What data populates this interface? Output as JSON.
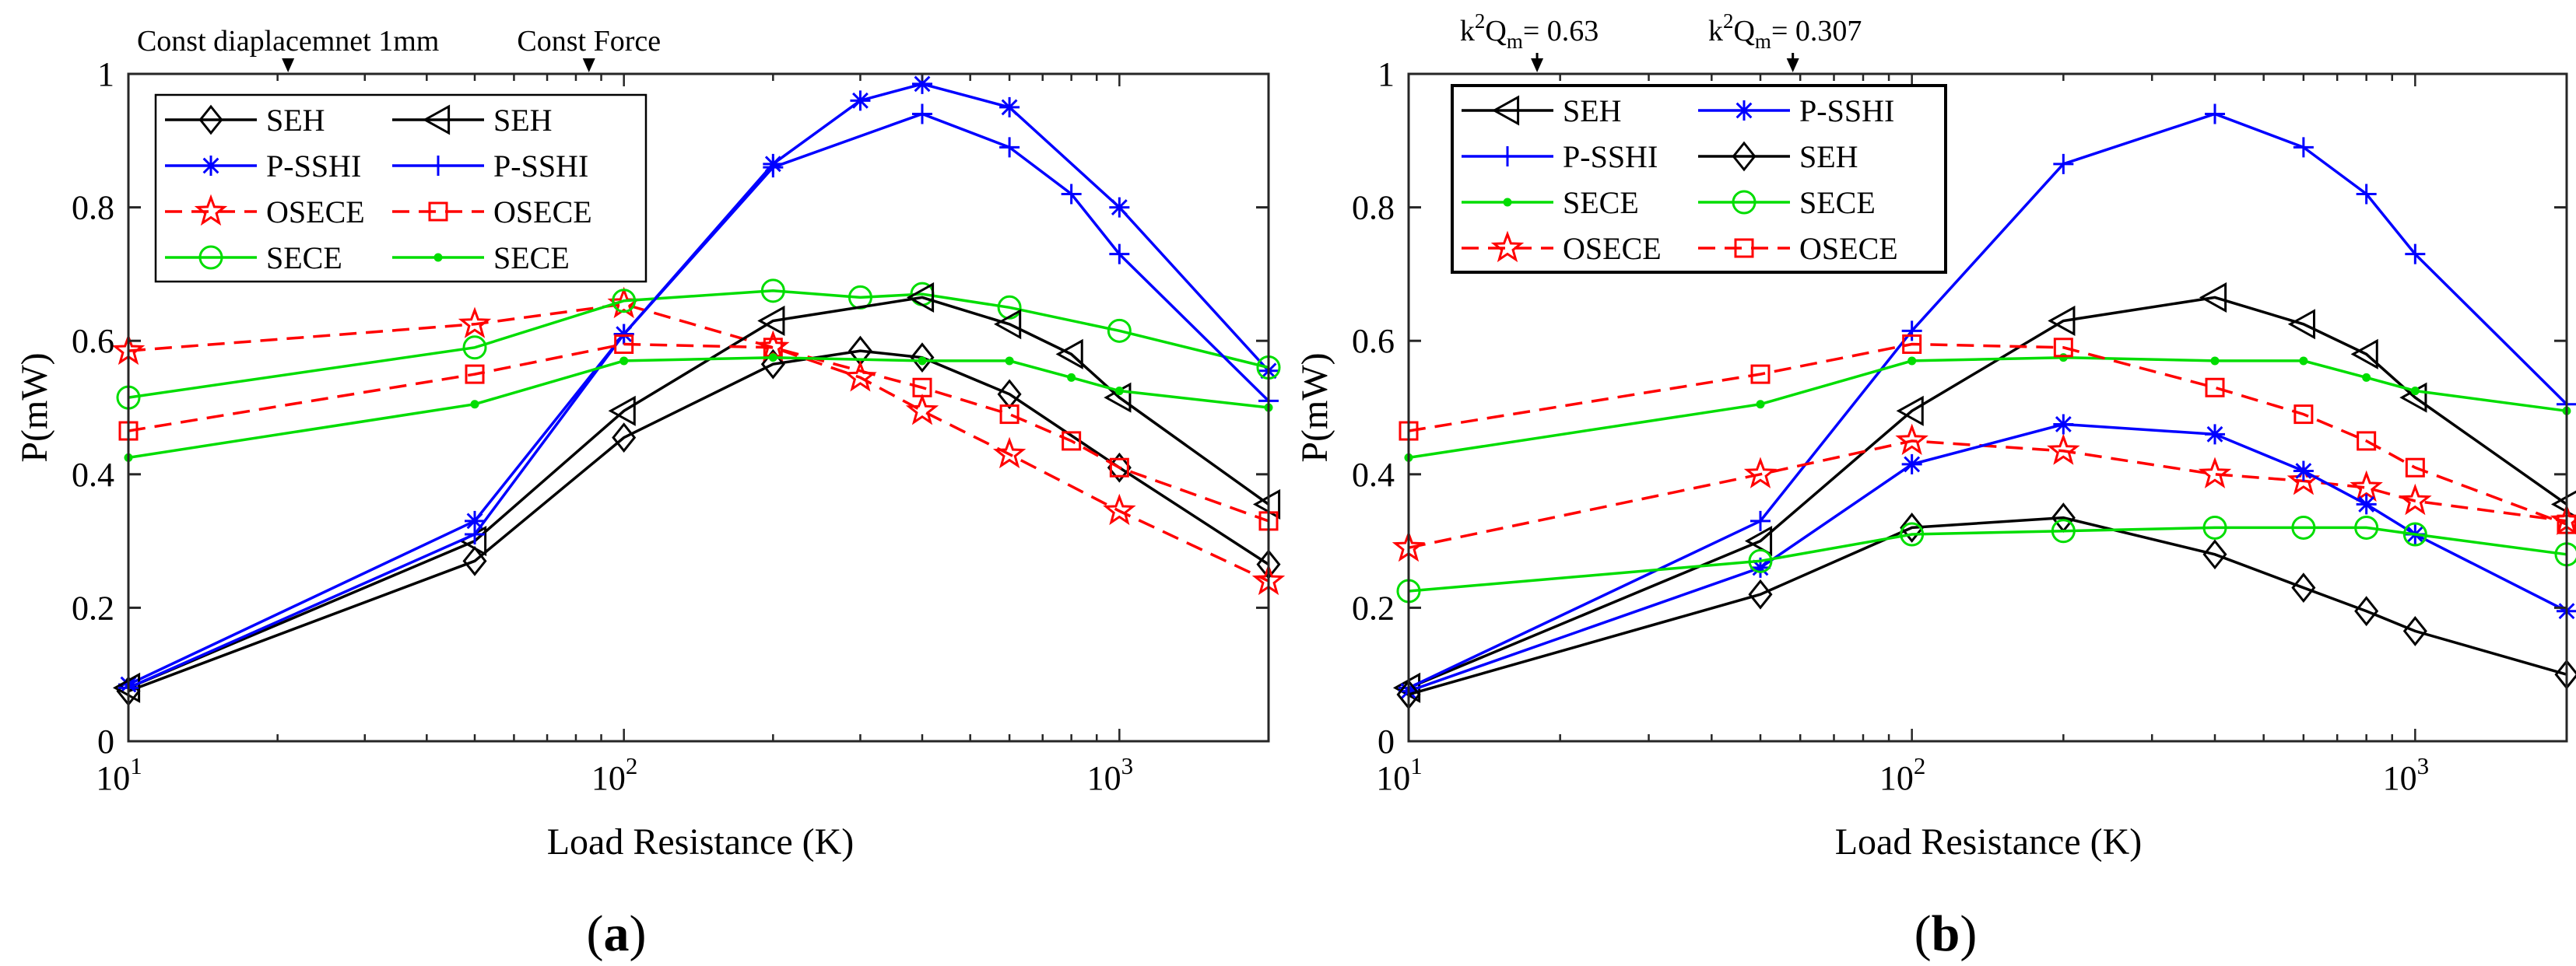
{
  "colors": {
    "black": "#000000",
    "blue": "#0000ff",
    "red": "#ff0000",
    "green": "#00dd00"
  },
  "chart_data": [
    {
      "type": "line",
      "panel_label": "(a)",
      "xlabel": "Load Resistance (K)",
      "ylabel": "P(mW)",
      "xscale": "log",
      "xlim": [
        10,
        2000
      ],
      "ylim": [
        0,
        1
      ],
      "x_ticks": [
        10,
        100,
        1000
      ],
      "x_tick_labels": [
        [
          "10",
          "1"
        ],
        [
          "10",
          "2"
        ],
        [
          "10",
          "3"
        ]
      ],
      "y_ticks": [
        0,
        0.2,
        0.4,
        0.6,
        0.8,
        1
      ],
      "y_tick_labels": [
        "0",
        "0.2",
        "0.4",
        "0.6",
        "0.8",
        "1"
      ],
      "grid": false,
      "legend_position": "top-left, two columns",
      "annotations": [
        {
          "text": "Const diaplacemnet 1mm",
          "x": 21
        },
        {
          "text": "Const Force",
          "x": 85
        }
      ],
      "series": [
        {
          "name": "SEH",
          "color": "black",
          "dash": "solid",
          "marker": "diamond",
          "legend": "left",
          "x": [
            10,
            50,
            100,
            200,
            300,
            400,
            600,
            1000,
            2000
          ],
          "y": [
            0.075,
            0.27,
            0.455,
            0.565,
            0.585,
            0.575,
            0.52,
            0.41,
            0.265
          ]
        },
        {
          "name": "P-SSHI",
          "color": "blue",
          "dash": "solid",
          "marker": "asterisk",
          "legend": "left",
          "x": [
            10,
            50,
            100,
            200,
            300,
            400,
            600,
            1000,
            2000
          ],
          "y": [
            0.085,
            0.33,
            0.61,
            0.865,
            0.96,
            0.985,
            0.95,
            0.8,
            0.555
          ]
        },
        {
          "name": "OSECE",
          "color": "red",
          "dash": "dashed",
          "marker": "star",
          "legend": "left",
          "x": [
            10,
            50,
            100,
            200,
            300,
            400,
            600,
            1000,
            2000
          ],
          "y": [
            0.585,
            0.625,
            0.655,
            0.59,
            0.545,
            0.495,
            0.43,
            0.345,
            0.24
          ]
        },
        {
          "name": "SECE",
          "color": "green",
          "dash": "solid",
          "marker": "circle",
          "legend": "left",
          "x": [
            10,
            50,
            100,
            200,
            300,
            400,
            600,
            1000,
            2000
          ],
          "y": [
            0.515,
            0.59,
            0.66,
            0.675,
            0.665,
            0.67,
            0.65,
            0.615,
            0.56
          ]
        },
        {
          "name": "SEH",
          "color": "black",
          "dash": "solid",
          "marker": "triangle-left",
          "legend": "right",
          "x": [
            10,
            50,
            100,
            200,
            400,
            600,
            800,
            1000,
            2000
          ],
          "y": [
            0.08,
            0.3,
            0.495,
            0.63,
            0.665,
            0.625,
            0.58,
            0.515,
            0.355
          ]
        },
        {
          "name": "P-SSHI",
          "color": "blue",
          "dash": "solid",
          "marker": "plus",
          "legend": "right",
          "x": [
            10,
            50,
            100,
            200,
            400,
            600,
            800,
            1000,
            2000
          ],
          "y": [
            0.08,
            0.31,
            0.61,
            0.86,
            0.94,
            0.89,
            0.82,
            0.73,
            0.51
          ]
        },
        {
          "name": "OSECE",
          "color": "red",
          "dash": "dashed",
          "marker": "square",
          "legend": "right",
          "x": [
            10,
            50,
            100,
            200,
            400,
            600,
            800,
            1000,
            2000
          ],
          "y": [
            0.465,
            0.55,
            0.595,
            0.59,
            0.53,
            0.49,
            0.45,
            0.41,
            0.33
          ]
        },
        {
          "name": "SECE",
          "color": "green",
          "dash": "solid",
          "marker": "dot",
          "legend": "right",
          "x": [
            10,
            50,
            100,
            200,
            400,
            600,
            800,
            1000,
            2000
          ],
          "y": [
            0.425,
            0.505,
            0.57,
            0.575,
            0.57,
            0.57,
            0.545,
            0.525,
            0.5
          ]
        }
      ]
    },
    {
      "type": "line",
      "panel_label": "(b)",
      "xlabel": "Load Resistance (K)",
      "ylabel": "P(mW)",
      "xscale": "log",
      "xlim": [
        10,
        2000
      ],
      "ylim": [
        0,
        1
      ],
      "x_ticks": [
        10,
        100,
        1000
      ],
      "x_tick_labels": [
        [
          "10",
          "1"
        ],
        [
          "10",
          "2"
        ],
        [
          "10",
          "3"
        ]
      ],
      "y_ticks": [
        0,
        0.2,
        0.4,
        0.6,
        0.8,
        1
      ],
      "y_tick_labels": [
        "0",
        "0.2",
        "0.4",
        "0.6",
        "0.8",
        "1"
      ],
      "grid": false,
      "legend_position": "top-left, two columns",
      "annotations": [
        {
          "text": "k²Qₘ= 0.63",
          "x": 18
        },
        {
          "text": "k²Qₘ= 0.307",
          "x": 58
        }
      ],
      "series": [
        {
          "name": "SEH",
          "color": "black",
          "dash": "solid",
          "marker": "triangle-left",
          "legend": "left",
          "x": [
            10,
            50,
            100,
            200,
            400,
            600,
            800,
            1000,
            2000
          ],
          "y": [
            0.08,
            0.3,
            0.495,
            0.63,
            0.665,
            0.625,
            0.58,
            0.515,
            0.355
          ]
        },
        {
          "name": "P-SSHI",
          "color": "blue",
          "dash": "solid",
          "marker": "plus",
          "legend": "left",
          "x": [
            10,
            50,
            100,
            200,
            400,
            600,
            800,
            1000,
            2000
          ],
          "y": [
            0.08,
            0.33,
            0.615,
            0.865,
            0.94,
            0.89,
            0.82,
            0.73,
            0.505
          ]
        },
        {
          "name": "SECE",
          "color": "green",
          "dash": "solid",
          "marker": "dot",
          "legend": "left",
          "x": [
            10,
            50,
            100,
            200,
            400,
            600,
            800,
            1000,
            2000
          ],
          "y": [
            0.425,
            0.505,
            0.57,
            0.575,
            0.57,
            0.57,
            0.545,
            0.525,
            0.495
          ]
        },
        {
          "name": "OSECE",
          "color": "red",
          "dash": "dashed",
          "marker": "star",
          "legend": "left",
          "x": [
            10,
            50,
            100,
            200,
            400,
            600,
            800,
            1000,
            2000
          ],
          "y": [
            0.29,
            0.4,
            0.45,
            0.435,
            0.4,
            0.39,
            0.38,
            0.36,
            0.33
          ]
        },
        {
          "name": "P-SSHI",
          "color": "blue",
          "dash": "solid",
          "marker": "asterisk",
          "legend": "right",
          "x": [
            10,
            50,
            100,
            200,
            400,
            600,
            800,
            1000,
            2000
          ],
          "y": [
            0.075,
            0.26,
            0.415,
            0.475,
            0.46,
            0.405,
            0.355,
            0.31,
            0.195
          ]
        },
        {
          "name": "SEH",
          "color": "black",
          "dash": "solid",
          "marker": "diamond",
          "legend": "right",
          "x": [
            10,
            50,
            100,
            200,
            400,
            600,
            800,
            1000,
            2000
          ],
          "y": [
            0.07,
            0.22,
            0.32,
            0.335,
            0.28,
            0.23,
            0.195,
            0.165,
            0.1
          ]
        },
        {
          "name": "SECE",
          "color": "green",
          "dash": "solid",
          "marker": "circle",
          "legend": "right",
          "x": [
            10,
            50,
            100,
            200,
            400,
            600,
            800,
            1000,
            2000
          ],
          "y": [
            0.225,
            0.27,
            0.31,
            0.315,
            0.32,
            0.32,
            0.32,
            0.31,
            0.28
          ]
        },
        {
          "name": "OSECE",
          "color": "red",
          "dash": "dashed",
          "marker": "square",
          "legend": "right",
          "x": [
            10,
            50,
            100,
            200,
            400,
            600,
            800,
            1000,
            2000
          ],
          "y": [
            0.465,
            0.55,
            0.595,
            0.59,
            0.53,
            0.49,
            0.45,
            0.41,
            0.325
          ]
        }
      ]
    }
  ]
}
